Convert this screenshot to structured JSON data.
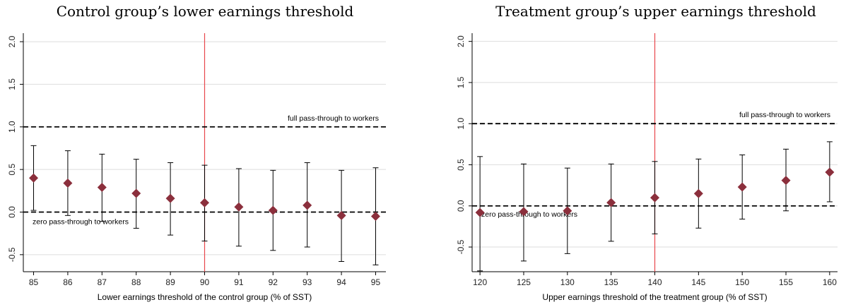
{
  "chart_data": [
    {
      "type": "scatter",
      "title": "Control group’s lower earnings threshold",
      "xlabel": "Lower earnings threshold of the control group (% of SST)",
      "ylabel": "",
      "x_ticks": [
        "85",
        "86",
        "87",
        "88",
        "89",
        "90",
        "91",
        "92",
        "93",
        "94",
        "95"
      ],
      "y_ticks": [
        {
          "value": -0.5,
          "label": "-0.5"
        },
        {
          "value": 0.0,
          "label": "0.0"
        },
        {
          "value": 0.5,
          "label": "0.5"
        },
        {
          "value": 1.0,
          "label": "1.0"
        },
        {
          "value": 1.5,
          "label": "1.5"
        },
        {
          "value": 2.0,
          "label": "2.0"
        }
      ],
      "xlim": [
        84.7,
        95.3
      ],
      "ylim": [
        -0.7,
        2.1
      ],
      "grid": true,
      "vline": 90,
      "vline_color": "#e8474c",
      "marker_color": "#8b2f3c",
      "points": [
        {
          "x": 85,
          "y": 0.4,
          "lo": 0.02,
          "hi": 0.78
        },
        {
          "x": 86,
          "y": 0.34,
          "lo": -0.04,
          "hi": 0.72
        },
        {
          "x": 87,
          "y": 0.29,
          "lo": -0.11,
          "hi": 0.68
        },
        {
          "x": 88,
          "y": 0.22,
          "lo": -0.19,
          "hi": 0.62
        },
        {
          "x": 89,
          "y": 0.16,
          "lo": -0.27,
          "hi": 0.58
        },
        {
          "x": 90,
          "y": 0.11,
          "lo": -0.34,
          "hi": 0.55
        },
        {
          "x": 91,
          "y": 0.06,
          "lo": -0.4,
          "hi": 0.51
        },
        {
          "x": 92,
          "y": 0.02,
          "lo": -0.45,
          "hi": 0.49
        },
        {
          "x": 93,
          "y": 0.08,
          "lo": -0.41,
          "hi": 0.58
        },
        {
          "x": 94,
          "y": -0.04,
          "lo": -0.58,
          "hi": 0.49
        },
        {
          "x": 95,
          "y": -0.05,
          "lo": -0.62,
          "hi": 0.52
        }
      ],
      "reference_lines": [
        {
          "y": 1.0,
          "label": "full pass-through to workers"
        },
        {
          "y": 0.0,
          "label": "zero pass-through to workers"
        }
      ]
    },
    {
      "type": "scatter",
      "title": "Treatment group’s upper earnings threshold",
      "xlabel": "Upper earnings threshold of the treatment group (% of SST)",
      "ylabel": "",
      "x_ticks": [
        "120",
        "125",
        "130",
        "135",
        "140",
        "145",
        "150",
        "155",
        "160"
      ],
      "y_ticks": [
        {
          "value": -0.5,
          "label": "-0.5"
        },
        {
          "value": 0.0,
          "label": "0.0"
        },
        {
          "value": 0.5,
          "label": "0.5"
        },
        {
          "value": 1.0,
          "label": "1.0"
        },
        {
          "value": 1.5,
          "label": "1.5"
        },
        {
          "value": 2.0,
          "label": "2.0"
        }
      ],
      "xlim": [
        119.1,
        160.9
      ],
      "ylim": [
        -0.8,
        2.1
      ],
      "grid": true,
      "vline": 140,
      "vline_color": "#e8474c",
      "marker_color": "#8b2f3c",
      "points": [
        {
          "x": 120,
          "y": -0.08,
          "lo": -0.79,
          "hi": 0.6
        },
        {
          "x": 125,
          "y": -0.07,
          "lo": -0.67,
          "hi": 0.51
        },
        {
          "x": 130,
          "y": -0.06,
          "lo": -0.58,
          "hi": 0.46
        },
        {
          "x": 135,
          "y": 0.04,
          "lo": -0.43,
          "hi": 0.51
        },
        {
          "x": 140,
          "y": 0.1,
          "lo": -0.34,
          "hi": 0.54
        },
        {
          "x": 145,
          "y": 0.15,
          "lo": -0.27,
          "hi": 0.57
        },
        {
          "x": 150,
          "y": 0.23,
          "lo": -0.16,
          "hi": 0.62
        },
        {
          "x": 155,
          "y": 0.31,
          "lo": -0.06,
          "hi": 0.69
        },
        {
          "x": 160,
          "y": 0.41,
          "lo": 0.05,
          "hi": 0.78
        }
      ],
      "reference_lines": [
        {
          "y": 1.0,
          "label": "full pass-through to workers"
        },
        {
          "y": 0.0,
          "label": "zero pass-through to workers"
        }
      ]
    }
  ]
}
